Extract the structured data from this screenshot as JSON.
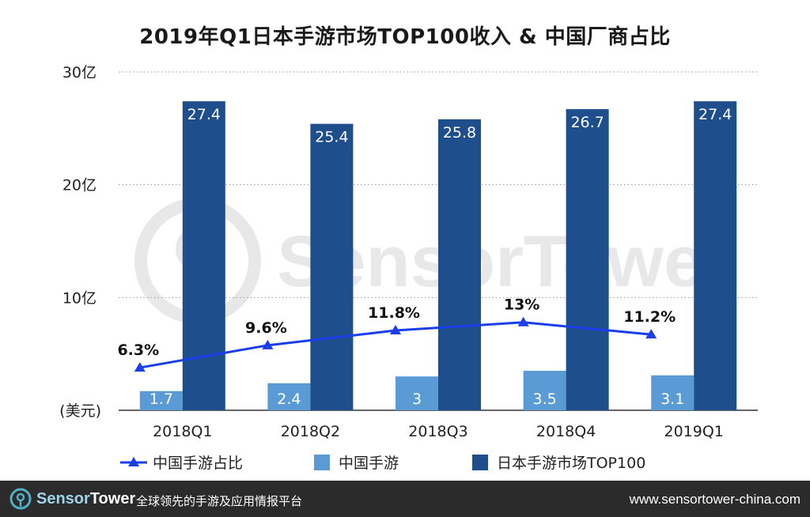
{
  "title": "2019年Q1日本手游市场TOP100收入 & 中国厂商占比",
  "watermark": "SensorTower",
  "y_unit_label": "(美元)",
  "y_tick_labels": [
    "30亿",
    "20亿",
    "10亿"
  ],
  "colors": {
    "china": "#5b9bd5",
    "japan_top100": "#1f4e8c",
    "share_line": "#1a3ee8",
    "grid": "#999999",
    "footer_bg": "#2b2b2b"
  },
  "chart_data": {
    "type": "bar",
    "title": "2019年Q1日本手游市场TOP100收入 & 中国厂商占比",
    "categories": [
      "2018Q1",
      "2018Q2",
      "2018Q3",
      "2018Q4",
      "2019Q1"
    ],
    "ylabel": "(美元)",
    "ylim": [
      0,
      30
    ],
    "yticks": [
      10,
      20,
      30
    ],
    "grid": true,
    "legend_position": "bottom",
    "series": [
      {
        "name": "中国手游",
        "type": "bar",
        "values": [
          1.7,
          2.4,
          3,
          3.5,
          3.1
        ],
        "value_labels": [
          "1.7",
          "2.4",
          "3",
          "3.5",
          "3.1"
        ]
      },
      {
        "name": "日本手游市场TOP100",
        "type": "bar",
        "values": [
          27.4,
          25.4,
          25.8,
          26.7,
          27.4
        ],
        "value_labels": [
          "27.4",
          "25.4",
          "25.8",
          "26.7",
          "27.4"
        ]
      },
      {
        "name": "中国手游占比",
        "type": "line",
        "values": [
          6.3,
          9.6,
          11.8,
          13,
          11.2
        ],
        "value_labels": [
          "6.3%",
          "9.6%",
          "11.8%",
          "13%",
          "11.2%"
        ]
      }
    ]
  },
  "legend": [
    {
      "label": "中国手游占比",
      "marker": "line-triangle",
      "color": "#1a3ee8"
    },
    {
      "label": "中国手游",
      "marker": "square",
      "color": "#5b9bd5"
    },
    {
      "label": "日本手游市场TOP100",
      "marker": "square",
      "color": "#1f4e8c"
    }
  ],
  "footer": {
    "brand_sensor": "Sensor",
    "brand_tower": "Tower",
    "tagline": "全球领先的手游及应用情报平台",
    "url": "www.sensortower-china.com"
  }
}
